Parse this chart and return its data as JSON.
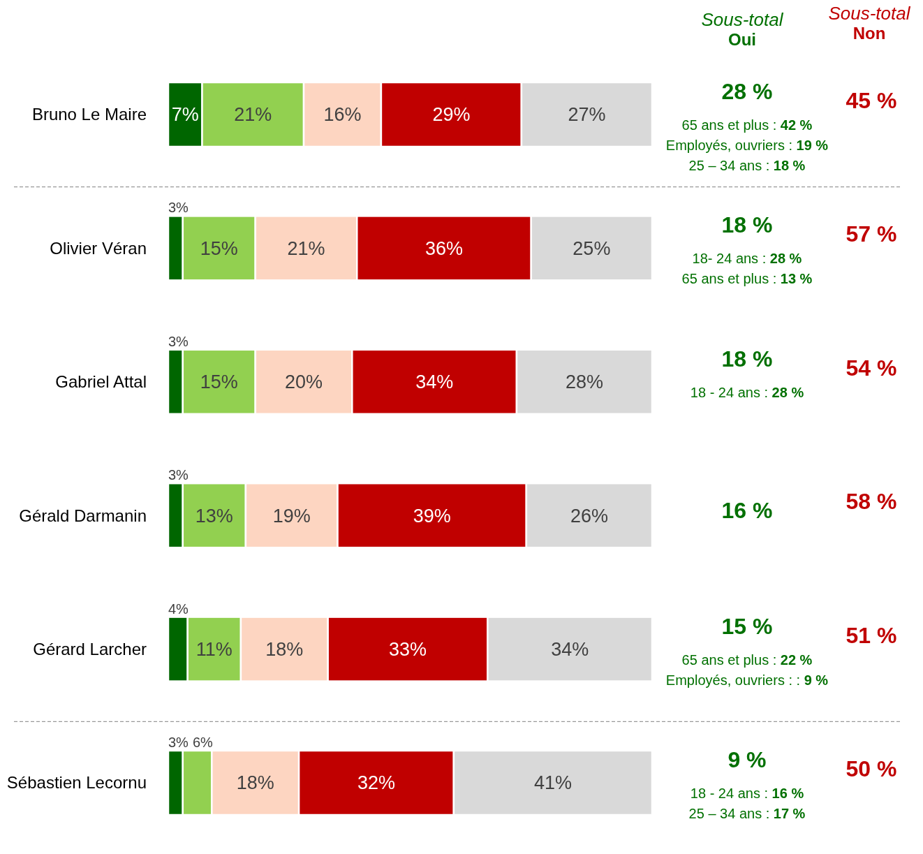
{
  "chart_data": {
    "type": "bar",
    "orientation": "horizontal",
    "stacked": true,
    "categories": [
      "Bruno Le Maire",
      "Olivier Véran",
      "Gabriel Attal",
      "Gérald Darmanin",
      "Gérard Larcher",
      "Sébastien Lecornu"
    ],
    "series": [
      {
        "color": "#006600",
        "values": [
          7,
          3,
          3,
          3,
          4,
          3
        ],
        "value_labels": [
          "7%",
          "3%",
          "3%",
          "3%",
          "4%",
          "3%"
        ]
      },
      {
        "color": "#92d050",
        "values": [
          21,
          15,
          15,
          13,
          11,
          6
        ],
        "value_labels": [
          "21%",
          "15%",
          "15%",
          "13%",
          "11%",
          "6%"
        ]
      },
      {
        "color": "#fdd5c1",
        "values": [
          16,
          21,
          20,
          19,
          18,
          18
        ],
        "value_labels": [
          "16%",
          "21%",
          "20%",
          "19%",
          "18%",
          "18%"
        ]
      },
      {
        "color": "#c00000",
        "values": [
          29,
          36,
          34,
          39,
          33,
          32
        ],
        "value_labels": [
          "29%",
          "36%",
          "34%",
          "39%",
          "33%",
          "32%"
        ]
      },
      {
        "color": "#d9d9d9",
        "values": [
          27,
          25,
          28,
          26,
          34,
          41
        ],
        "value_labels": [
          "27%",
          "25%",
          "28%",
          "26%",
          "34%",
          "41%"
        ]
      }
    ],
    "annotations": [
      "Sous-total",
      "Oui",
      "Sous-total",
      "Non",
      "28 %",
      "45 %",
      "65 ans et plus : 42 %",
      "Employés, ouvriers : 19 %",
      "25 – 34 ans : 18 %",
      "18 %",
      "57 %",
      "18- 24 ans : 28 %",
      "65 ans et plus : 13 %",
      "18 %",
      "54 %",
      "18  - 24 ans : 28 %",
      "16 %",
      "58 %",
      "15 %",
      "51 %",
      "65 ans et plus : 22 %",
      "Employés, ouvriers : : 9 %",
      "9 %",
      "50 %",
      "18 - 24 ans : 16 %",
      "25 – 34 ans : 17 %"
    ]
  }
}
